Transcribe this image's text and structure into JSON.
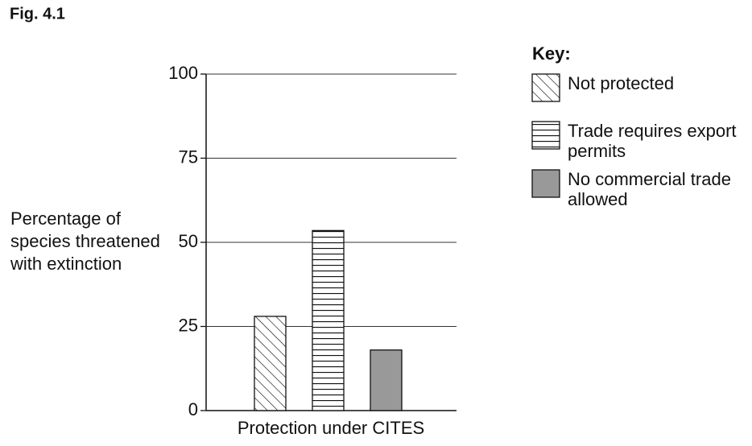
{
  "chart_data": {
    "type": "bar",
    "figure_label": "Fig. 4.1",
    "ylabel": [
      "Percentage of",
      "species threatened",
      "with extinction"
    ],
    "xlabel": "Protection under CITES",
    "categories": [
      null
    ],
    "series": [
      {
        "name": "Not protected",
        "color": "#ffffff",
        "pattern": "diagonal",
        "values": [
          28
        ]
      },
      {
        "name": "Trade requires export permits",
        "color": "#ffffff",
        "pattern": "horizontal",
        "values": [
          53.5
        ]
      },
      {
        "name": "No commercial trade allowed",
        "color": "#999999",
        "pattern": "solid",
        "values": [
          18
        ]
      }
    ],
    "ylim": [
      0,
      100
    ],
    "yticks": [
      0,
      25,
      50,
      75,
      100
    ],
    "grid": true,
    "legend_title": "Key:",
    "legend_position": "right"
  }
}
